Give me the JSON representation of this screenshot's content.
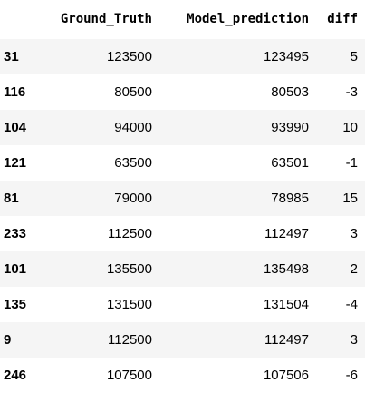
{
  "table": {
    "columns": [
      {
        "key": "index",
        "label": ""
      },
      {
        "key": "ground_truth",
        "label": "Ground_Truth"
      },
      {
        "key": "model_prediction",
        "label": "Model_prediction"
      },
      {
        "key": "diff",
        "label": "diff"
      }
    ],
    "rows": [
      {
        "index": "31",
        "ground_truth": "123500",
        "model_prediction": "123495",
        "diff": "5"
      },
      {
        "index": "116",
        "ground_truth": "80500",
        "model_prediction": "80503",
        "diff": "-3"
      },
      {
        "index": "104",
        "ground_truth": "94000",
        "model_prediction": "93990",
        "diff": "10"
      },
      {
        "index": "121",
        "ground_truth": "63500",
        "model_prediction": "63501",
        "diff": "-1"
      },
      {
        "index": "81",
        "ground_truth": "79000",
        "model_prediction": "78985",
        "diff": "15"
      },
      {
        "index": "233",
        "ground_truth": "112500",
        "model_prediction": "112497",
        "diff": "3"
      },
      {
        "index": "101",
        "ground_truth": "135500",
        "model_prediction": "135498",
        "diff": "2"
      },
      {
        "index": "135",
        "ground_truth": "131500",
        "model_prediction": "131504",
        "diff": "-4"
      },
      {
        "index": "9",
        "ground_truth": "112500",
        "model_prediction": "112497",
        "diff": "3"
      },
      {
        "index": "246",
        "ground_truth": "107500",
        "model_prediction": "107506",
        "diff": "-6"
      }
    ]
  }
}
